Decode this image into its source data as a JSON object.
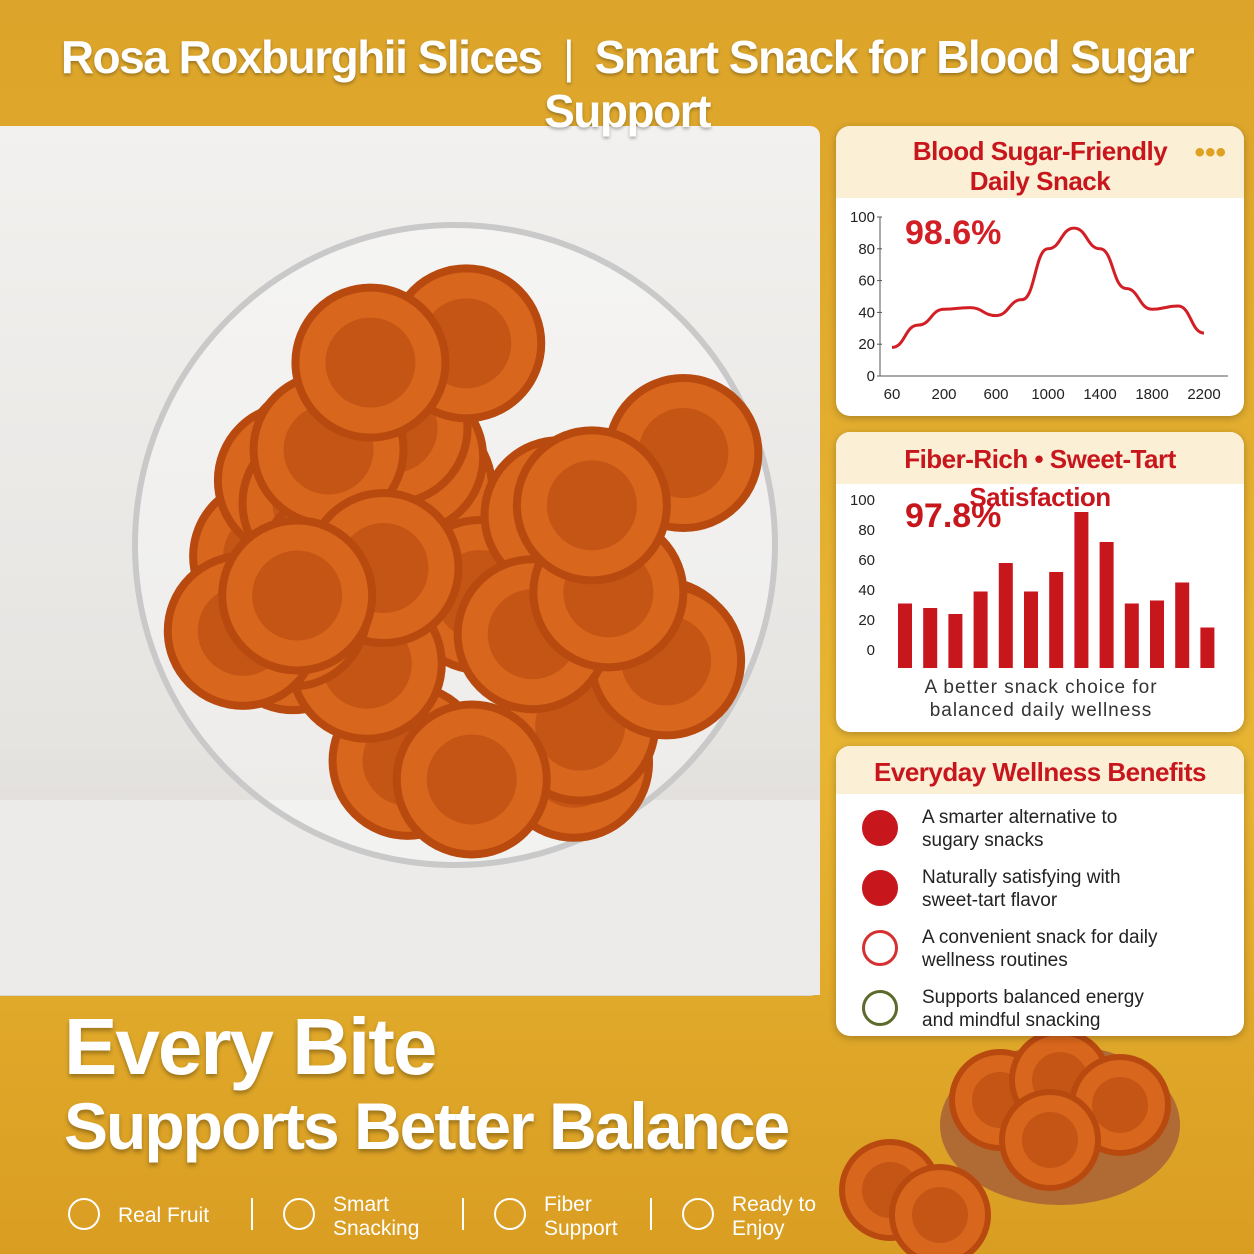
{
  "header": {
    "title_left": "Rosa Roxburghii Slices",
    "title_right": "Smart Snack for Blood Sugar Support"
  },
  "chart_data": [
    {
      "type": "line",
      "title": "Blood Sugar-Friendly Daily Snack",
      "annotation": "98.6%",
      "categories": [
        "60",
        null,
        "200",
        null,
        "600",
        null,
        "1000",
        null,
        "1400",
        null,
        "1800",
        null,
        "2200"
      ],
      "values": [
        18,
        32,
        42,
        43,
        38,
        48,
        80,
        93,
        80,
        55,
        42,
        44,
        27
      ],
      "color": "#d21f26",
      "ylim": [
        0,
        100
      ],
      "yticks": [
        0,
        20,
        40,
        60,
        80,
        100
      ]
    },
    {
      "type": "bar",
      "title": "Fiber-Rich • Sweet-Tart Satisfaction",
      "annotation": "97.8%",
      "values": [
        31,
        28,
        24,
        39,
        58,
        39,
        52,
        92,
        72,
        31,
        33,
        45,
        15
      ],
      "color": "#c8161d",
      "ylim": [
        0,
        100
      ],
      "yticks": [
        0,
        20,
        40,
        60,
        80,
        100
      ],
      "caption": "A better snack choice for balanced daily wellness"
    }
  ],
  "benefits": {
    "title": "Everyday Wellness Benefits",
    "items": [
      "A smarter alternative to sugary snacks",
      "Naturally satisfying with sweet-tart flavor",
      "A convenient snack for daily wellness routines",
      "Supports balanced energy and mindful snacking"
    ]
  },
  "headline": {
    "line1": "Every Bite",
    "line2": "Supports Better Balance"
  },
  "features": [
    "Real Fruit",
    "Smart Snacking",
    "Fiber Support",
    "Ready to Enjoy"
  ]
}
